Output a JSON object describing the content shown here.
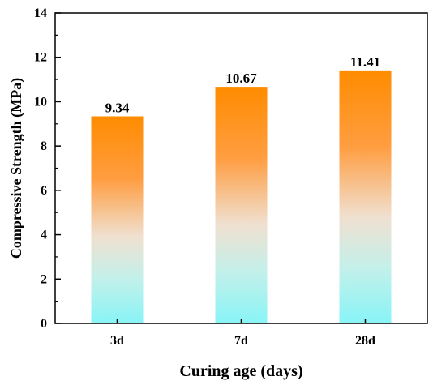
{
  "chart_data": {
    "type": "bar",
    "categories": [
      "3d",
      "7d",
      "28d"
    ],
    "values": [
      9.34,
      10.67,
      11.41
    ],
    "data_labels": [
      "9.34",
      "10.67",
      "11.41"
    ],
    "title": "",
    "xlabel": "Curing age (days)",
    "ylabel": "Compressive Strength (MPa)",
    "ylim": [
      0,
      14
    ],
    "yticks": [
      0,
      2,
      4,
      6,
      8,
      10,
      12,
      14
    ],
    "grid": false,
    "legend": "none",
    "colors": {
      "bar_top": "#ff8c00",
      "bar_mid": "#f0e0d0",
      "bar_bottom": "#88f4f6",
      "axis": "#000000"
    }
  }
}
